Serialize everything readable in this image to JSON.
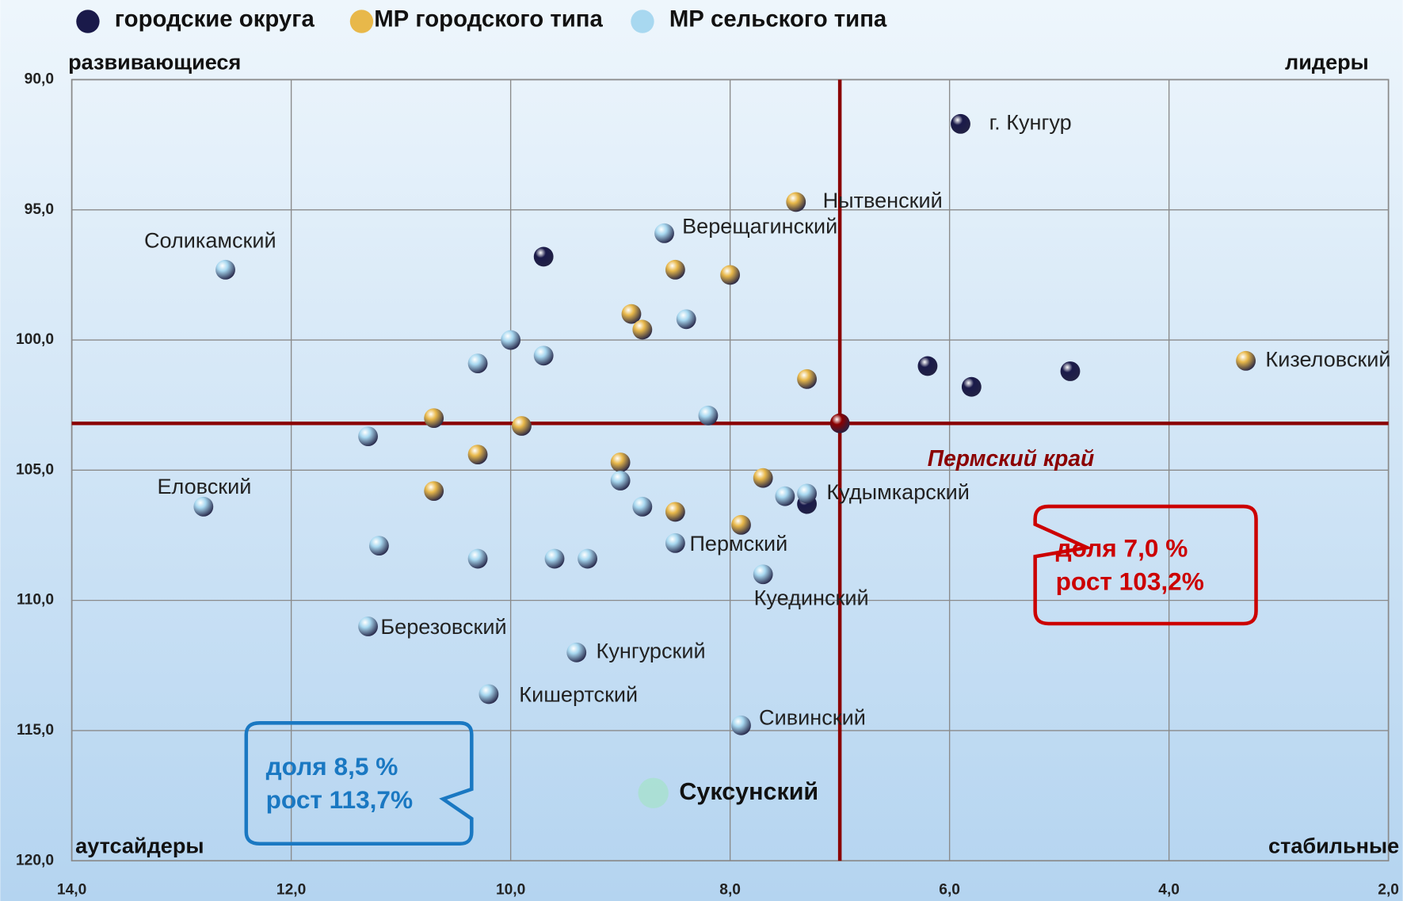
{
  "chart_data": {
    "type": "scatter",
    "xlim": [
      14,
      2
    ],
    "ylim": [
      90,
      120
    ],
    "xticks": [
      {
        "value": 14,
        "label": "14,0"
      },
      {
        "value": 12,
        "label": "12,0"
      },
      {
        "value": 10,
        "label": "10,0"
      },
      {
        "value": 8,
        "label": "8,0"
      },
      {
        "value": 6,
        "label": "6,0"
      },
      {
        "value": 4,
        "label": "4,0"
      },
      {
        "value": 2,
        "label": "2,0"
      }
    ],
    "yticks": [
      {
        "value": 90,
        "label": "90,0"
      },
      {
        "value": 95,
        "label": "95,0"
      },
      {
        "value": 100,
        "label": "100,0"
      },
      {
        "value": 105,
        "label": "105,0"
      },
      {
        "value": 110,
        "label": "110,0"
      },
      {
        "value": 115,
        "label": "115,0"
      },
      {
        "value": 120,
        "label": "120,0"
      }
    ],
    "grid": true,
    "legend": "top",
    "quadrants": {
      "top_left": "развивающиеся",
      "top_right": "лидеры",
      "bottom_left": "аутсайдеры",
      "bottom_right": "стабильные"
    },
    "reference": {
      "label": "Пермский край",
      "x": 7.0,
      "y": 103.2,
      "color": "#8b0000"
    },
    "series": [
      {
        "name": "городские округа",
        "color": "#1a1a4a",
        "x": [
          5.9,
          9.7,
          6.2,
          5.8,
          4.9,
          7.3
        ],
        "values": [
          91.7,
          96.8,
          101.0,
          101.8,
          101.2,
          106.3
        ],
        "labels": [
          "г. Кунгур",
          null,
          null,
          null,
          null,
          null
        ]
      },
      {
        "name": "МР городского типа",
        "color": "#e8b84a",
        "x": [
          7.4,
          8.5,
          8.0,
          8.9,
          8.8,
          7.3,
          3.3,
          10.7,
          9.9,
          10.3,
          10.7,
          9.0,
          7.7,
          8.5,
          7.9
        ],
        "values": [
          94.7,
          97.3,
          97.5,
          99.0,
          99.6,
          101.5,
          100.8,
          103.0,
          103.3,
          104.4,
          105.8,
          104.7,
          105.3,
          106.6,
          107.1
        ],
        "labels": [
          "Нытвенский",
          null,
          null,
          null,
          null,
          null,
          "Кизеловский",
          null,
          null,
          null,
          null,
          null,
          null,
          null,
          null
        ]
      },
      {
        "name": "МР сельского типа",
        "color": "#a8d8f0",
        "x": [
          12.6,
          8.6,
          8.4,
          10.0,
          10.3,
          9.7,
          8.2,
          11.3,
          12.8,
          9.0,
          8.8,
          7.5,
          7.3,
          11.2,
          10.3,
          9.6,
          9.3,
          8.5,
          7.7,
          11.3,
          9.4,
          10.2,
          7.9
        ],
        "values": [
          97.3,
          95.9,
          99.2,
          100.0,
          100.9,
          100.6,
          102.9,
          103.7,
          106.4,
          105.4,
          106.4,
          106.0,
          105.9,
          107.9,
          108.4,
          108.4,
          108.4,
          107.8,
          109.0,
          111.0,
          112.0,
          113.6,
          114.8
        ],
        "labels": [
          "Соликамский",
          "Верещагинский",
          null,
          null,
          null,
          null,
          null,
          null,
          "Еловский",
          null,
          null,
          null,
          "Кудымкарский",
          null,
          null,
          null,
          null,
          "Пермский",
          "Куединский",
          "Березовский",
          "Кунгурский",
          "Кишертский",
          "Сивинский"
        ]
      }
    ],
    "highlight": {
      "label": "Суксунский",
      "x": 8.7,
      "y": 117.4,
      "color": "#a8e0d0"
    },
    "annotations": [
      {
        "lines": [
          "доля 8,5 %",
          "рост  113,7%"
        ],
        "color": "#1a78c2"
      },
      {
        "lines": [
          "доля 7,0 %",
          "рост 103,2%"
        ],
        "color": "#cc0000"
      }
    ]
  }
}
